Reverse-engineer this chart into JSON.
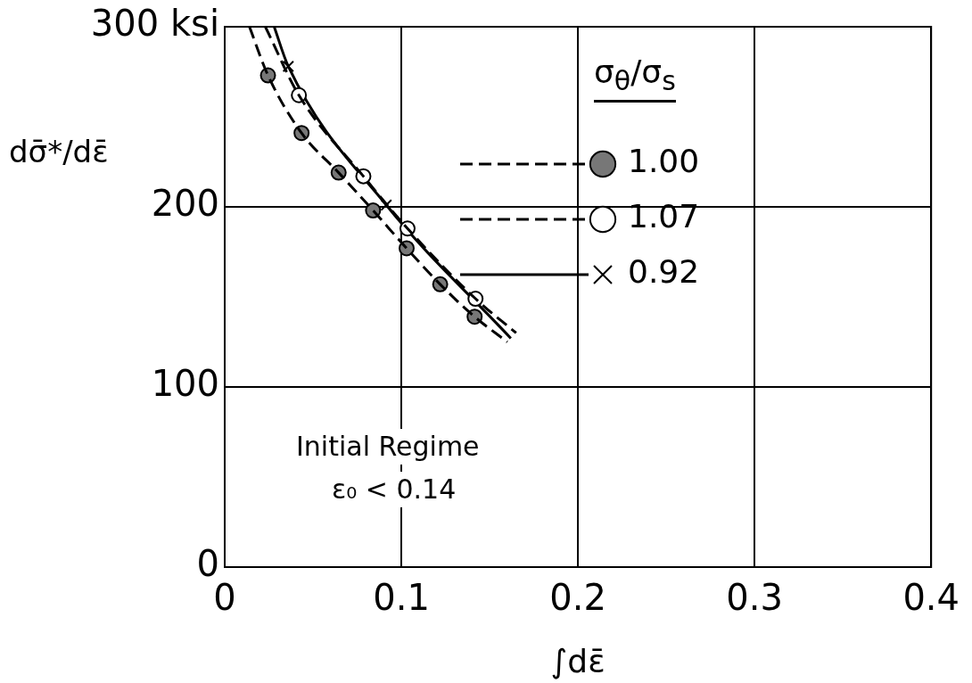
{
  "chart_data": {
    "type": "line",
    "xlabel": "∫dε̄",
    "ylabel": "dσ̄*/dε̄",
    "legend_title": "σ$_{θ}$/σ$_{s}$",
    "xlim": [
      0,
      0.4
    ],
    "ylim": [
      0,
      300
    ],
    "xticks": [
      0,
      0.1,
      0.2,
      0.3,
      0.4
    ],
    "yticks": [
      0,
      100,
      200,
      {
        "value": 300,
        "label": "300 ksi"
      }
    ],
    "grid": true,
    "legend": "top right",
    "annotations": [
      "Initial Regime",
      "ε₀ < 0.14"
    ],
    "series": [
      {
        "color": "#000000",
        "line_style": "dashed",
        "marker": "none",
        "x": [
          0.014,
          0.0245,
          0.0435,
          0.0645,
          0.084,
          0.103,
          0.122,
          0.1415,
          0.16
        ],
        "values": [
          300,
          273,
          241,
          219,
          198,
          177,
          157,
          139,
          125
        ]
      },
      {
        "name": "1.00",
        "type": "scatter",
        "color": "#777777",
        "marker": "circle",
        "x": [
          0.0245,
          0.0435,
          0.0645,
          0.084,
          0.103,
          0.122,
          0.1415
        ],
        "values": [
          273,
          241,
          219,
          198,
          177,
          157,
          139
        ]
      },
      {
        "color": "#000000",
        "line_style": "dashed",
        "marker": "none",
        "x": [
          0.023,
          0.042,
          0.0785,
          0.1035,
          0.142,
          0.165
        ],
        "values": [
          300,
          262,
          217,
          188,
          149,
          130
        ]
      },
      {
        "name": "1.07",
        "type": "scatter",
        "color": "#ffffff",
        "marker": "circle",
        "x": [
          0.042,
          0.0785,
          0.1035,
          0.142
        ],
        "values": [
          262,
          217,
          188,
          149
        ]
      },
      {
        "color": "#000000",
        "line_style": "solid",
        "marker": "none",
        "x": [
          0.028,
          0.036,
          0.0915,
          0.162
        ],
        "values": [
          300,
          278,
          201,
          127
        ]
      },
      {
        "name": "0.92",
        "type": "scatter",
        "color": "#000000",
        "marker": "cross",
        "x": [
          0.036,
          0.0915
        ],
        "values": [
          278,
          201
        ]
      }
    ]
  }
}
